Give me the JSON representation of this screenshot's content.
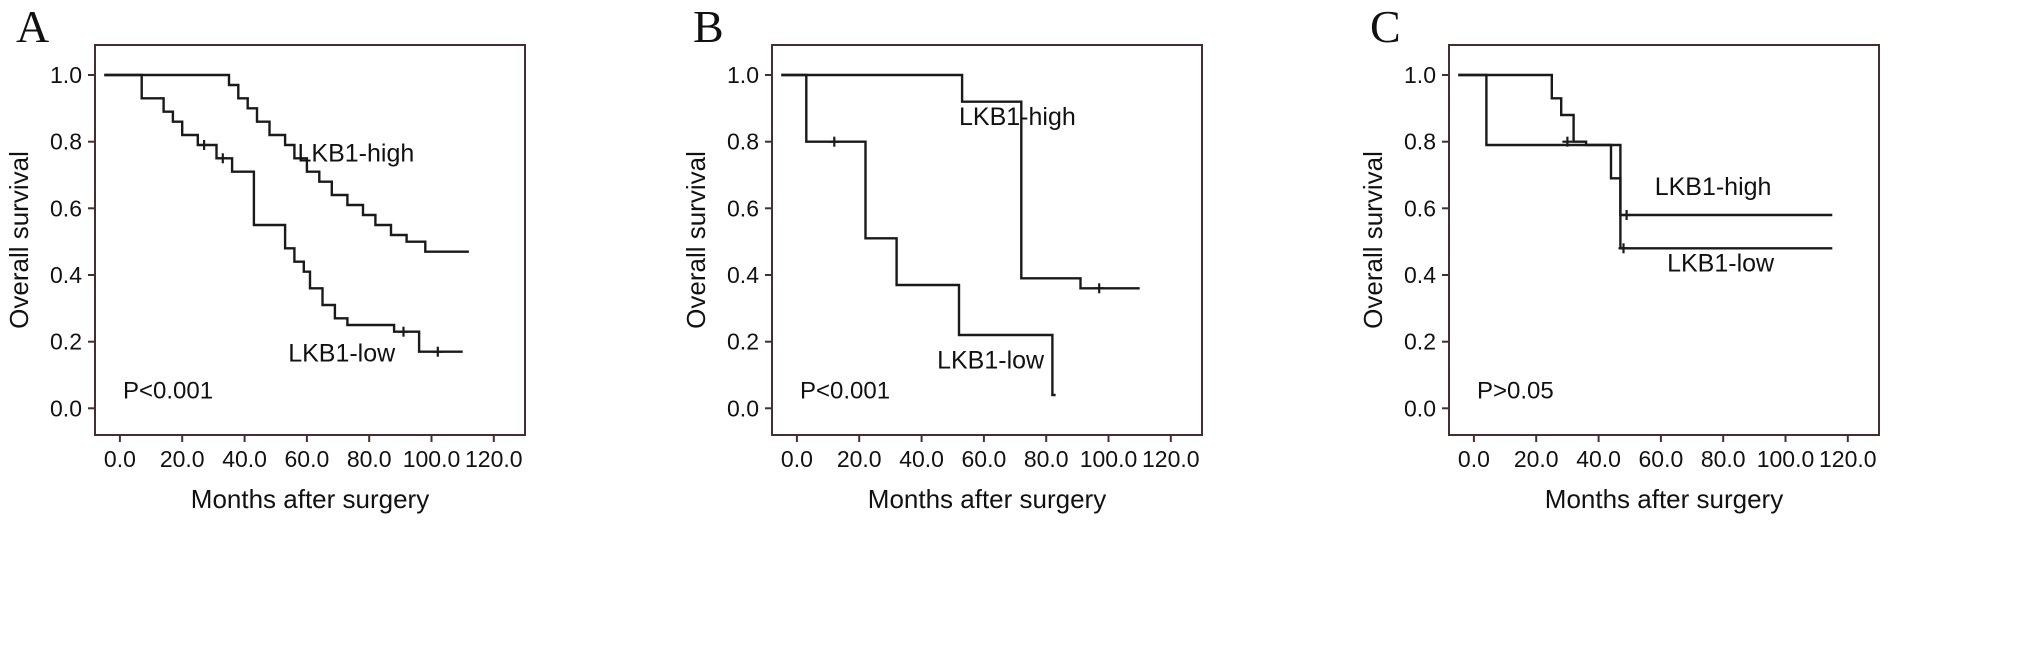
{
  "figure": {
    "description": "Kaplan-Meier overall survival curves by LKB1 expression, panels A, B, C",
    "x_axis_label": "Months after surgery",
    "y_axis_label": "Overall survival",
    "colors": {
      "background": "#ffffff",
      "curve": "#1a1a1a",
      "plot_border": "#452e2e",
      "text": "#111111"
    }
  },
  "chart_data": [
    {
      "type": "line",
      "subtype": "kaplan-meier-step",
      "panel": "A",
      "xlabel": "Months after surgery",
      "ylabel": "Overall survival",
      "xlim": [
        -8,
        130
      ],
      "ylim": [
        -0.08,
        1.09
      ],
      "x_ticks": [
        0,
        20,
        40,
        60,
        80,
        100,
        120
      ],
      "x_tick_labels": [
        "0.0",
        "20.0",
        "40.0",
        "60.0",
        "80.0",
        "100.0",
        "120.0"
      ],
      "y_ticks": [
        0,
        0.2,
        0.4,
        0.6,
        0.8,
        1.0
      ],
      "y_tick_labels": [
        "0.0",
        "0.2",
        "0.4",
        "0.6",
        "0.8",
        "1.0"
      ],
      "p_value": {
        "text": "P<0.001",
        "x": 1,
        "y": 0.03
      },
      "series": [
        {
          "name": "LKB1-high",
          "label_pos": {
            "x": 57,
            "y": 0.74
          },
          "end_x": 112,
          "steps": [
            [
              0,
              1.0
            ],
            [
              35,
              0.97
            ],
            [
              38,
              0.93
            ],
            [
              41,
              0.9
            ],
            [
              44,
              0.86
            ],
            [
              48,
              0.82
            ],
            [
              53,
              0.79
            ],
            [
              56,
              0.75
            ],
            [
              60,
              0.71
            ],
            [
              64,
              0.68
            ],
            [
              68,
              0.64
            ],
            [
              73,
              0.61
            ],
            [
              78,
              0.58
            ],
            [
              82,
              0.55
            ],
            [
              87,
              0.52
            ],
            [
              92,
              0.5
            ],
            [
              98,
              0.47
            ]
          ],
          "censors": []
        },
        {
          "name": "LKB1-low",
          "label_pos": {
            "x": 54,
            "y": 0.14
          },
          "end_x": 110,
          "steps": [
            [
              0,
              1.0
            ],
            [
              7,
              0.93
            ],
            [
              14,
              0.89
            ],
            [
              17,
              0.86
            ],
            [
              20,
              0.82
            ],
            [
              25,
              0.79
            ],
            [
              31,
              0.75
            ],
            [
              36,
              0.71
            ],
            [
              43,
              0.55
            ],
            [
              53,
              0.48
            ],
            [
              56,
              0.44
            ],
            [
              59,
              0.41
            ],
            [
              61,
              0.36
            ],
            [
              65,
              0.31
            ],
            [
              69,
              0.27
            ],
            [
              73,
              0.25
            ],
            [
              88,
              0.23
            ],
            [
              96,
              0.17
            ]
          ],
          "censors": [
            [
              27,
              0.79
            ],
            [
              33,
              0.75
            ],
            [
              91,
              0.23
            ],
            [
              102,
              0.17
            ]
          ]
        }
      ]
    },
    {
      "type": "line",
      "subtype": "kaplan-meier-step",
      "panel": "B",
      "xlabel": "Months after surgery",
      "ylabel": "Overall survival",
      "xlim": [
        -8,
        130
      ],
      "ylim": [
        -0.08,
        1.09
      ],
      "x_ticks": [
        0,
        20,
        40,
        60,
        80,
        100,
        120
      ],
      "x_tick_labels": [
        "0.0",
        "20.0",
        "40.0",
        "60.0",
        "80.0",
        "100.0",
        "120.0"
      ],
      "y_ticks": [
        0,
        0.2,
        0.4,
        0.6,
        0.8,
        1.0
      ],
      "y_tick_labels": [
        "0.0",
        "0.2",
        "0.4",
        "0.6",
        "0.8",
        "1.0"
      ],
      "p_value": {
        "text": "P<0.001",
        "x": 1,
        "y": 0.03
      },
      "series": [
        {
          "name": "LKB1-high",
          "label_pos": {
            "x": 52,
            "y": 0.85
          },
          "end_x": 110,
          "steps": [
            [
              0,
              1.0
            ],
            [
              53,
              0.92
            ],
            [
              72,
              0.39
            ],
            [
              91,
              0.36
            ]
          ],
          "censors": [
            [
              97,
              0.36
            ]
          ]
        },
        {
          "name": "LKB1-low",
          "label_pos": {
            "x": 45,
            "y": 0.12
          },
          "end_x": 83,
          "steps": [
            [
              0,
              1.0
            ],
            [
              3,
              0.8
            ],
            [
              22,
              0.51
            ],
            [
              32,
              0.37
            ],
            [
              52,
              0.22
            ],
            [
              82,
              0.04
            ]
          ],
          "censors": [
            [
              12,
              0.8
            ]
          ]
        }
      ]
    },
    {
      "type": "line",
      "subtype": "kaplan-meier-step",
      "panel": "C",
      "xlabel": "Months after surgery",
      "ylabel": "Overall survival",
      "xlim": [
        -8,
        130
      ],
      "ylim": [
        -0.08,
        1.09
      ],
      "x_ticks": [
        0,
        20,
        40,
        60,
        80,
        100,
        120
      ],
      "x_tick_labels": [
        "0.0",
        "20.0",
        "40.0",
        "60.0",
        "80.0",
        "100.0",
        "120.0"
      ],
      "y_ticks": [
        0,
        0.2,
        0.4,
        0.6,
        0.8,
        1.0
      ],
      "y_tick_labels": [
        "0.0",
        "0.2",
        "0.4",
        "0.6",
        "0.8",
        "1.0"
      ],
      "p_value": {
        "text": "P>0.05",
        "x": 1,
        "y": 0.03
      },
      "series": [
        {
          "name": "LKB1-high",
          "label_pos": {
            "x": 58,
            "y": 0.64
          },
          "end_x": 115,
          "steps": [
            [
              0,
              1.0
            ],
            [
              25,
              0.93
            ],
            [
              28,
              0.88
            ],
            [
              32,
              0.8
            ],
            [
              36,
              0.79
            ],
            [
              44,
              0.69
            ],
            [
              47,
              0.58
            ]
          ],
          "censors": [
            [
              30,
              0.8
            ],
            [
              49,
              0.58
            ]
          ]
        },
        {
          "name": "LKB1-low",
          "label_pos": {
            "x": 62,
            "y": 0.41
          },
          "end_x": 115,
          "steps": [
            [
              0,
              1.0
            ],
            [
              4,
              0.79
            ],
            [
              47,
              0.48
            ]
          ],
          "censors": [
            [
              48,
              0.48
            ]
          ]
        }
      ]
    }
  ]
}
